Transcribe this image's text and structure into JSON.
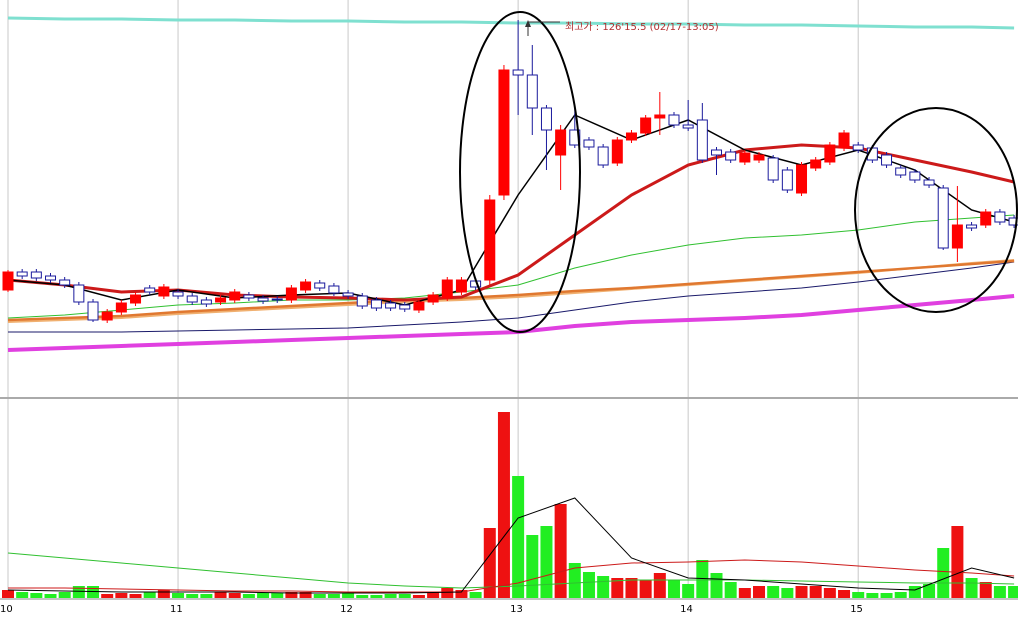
{
  "chart_data": {
    "type": "candlestick",
    "categories": [
      "10",
      null,
      null,
      null,
      null,
      null,
      null,
      null,
      null,
      null,
      null,
      null,
      "11",
      null,
      null,
      null,
      null,
      null,
      null,
      null,
      null,
      null,
      null,
      null,
      "12",
      null,
      null,
      null,
      null,
      null,
      null,
      null,
      null,
      null,
      null,
      null,
      "13",
      null,
      null,
      null,
      null,
      null,
      null,
      null,
      null,
      null,
      null,
      null,
      "14",
      null,
      null,
      null,
      null,
      null,
      null,
      null,
      null,
      null,
      null,
      null,
      "15",
      null,
      null,
      null,
      null,
      null,
      null,
      null,
      null,
      null,
      null,
      null
    ],
    "open": [
      110,
      128,
      128,
      124,
      120,
      115,
      98,
      80,
      88,
      97,
      112,
      104,
      108,
      104,
      100,
      98,
      100,
      105,
      102,
      101,
      100,
      110,
      117,
      114,
      107,
      104,
      100,
      97,
      95,
      90,
      98,
      102,
      108,
      119,
      120,
      205,
      330,
      325,
      292,
      245,
      270,
      260,
      253,
      237,
      260,
      267,
      282,
      285,
      275,
      280,
      250,
      248,
      238,
      240,
      242,
      230,
      207,
      232,
      238,
      252,
      255,
      252,
      245,
      232,
      228,
      220,
      212,
      152,
      175,
      175,
      188,
      182
    ],
    "close": [
      128,
      124,
      122,
      120,
      115,
      98,
      80,
      88,
      97,
      105,
      108,
      113,
      104,
      98,
      96,
      102,
      108,
      102,
      99,
      100,
      112,
      118,
      112,
      107,
      104,
      94,
      92,
      92,
      91,
      98,
      105,
      120,
      120,
      113,
      200,
      330,
      325,
      292,
      270,
      270,
      255,
      253,
      235,
      260,
      267,
      282,
      285,
      275,
      272,
      240,
      245,
      240,
      247,
      245,
      220,
      210,
      235,
      240,
      255,
      267,
      250,
      240,
      235,
      225,
      220,
      215,
      152,
      175,
      172,
      188,
      178,
      175
    ],
    "high": [
      130,
      131,
      131,
      127,
      123,
      118,
      101,
      91,
      100,
      108,
      115,
      116,
      111,
      107,
      103,
      105,
      111,
      108,
      105,
      104,
      115,
      121,
      120,
      117,
      110,
      107,
      103,
      100,
      98,
      101,
      108,
      123,
      123,
      122,
      205,
      335,
      380,
      355,
      295,
      275,
      292,
      263,
      256,
      263,
      270,
      285,
      308,
      288,
      300,
      297,
      253,
      251,
      250,
      248,
      245,
      233,
      238,
      243,
      258,
      270,
      258,
      255,
      248,
      235,
      231,
      223,
      215,
      214,
      178,
      191,
      191,
      185
    ],
    "low": [
      108,
      121,
      119,
      117,
      112,
      95,
      78,
      77,
      85,
      94,
      105,
      101,
      101,
      95,
      93,
      95,
      97,
      99,
      96,
      97,
      97,
      107,
      109,
      104,
      101,
      91,
      89,
      89,
      88,
      87,
      95,
      99,
      105,
      110,
      115,
      200,
      285,
      265,
      230,
      210,
      252,
      250,
      232,
      234,
      257,
      264,
      265,
      272,
      269,
      237,
      225,
      237,
      235,
      237,
      217,
      207,
      204,
      229,
      235,
      249,
      247,
      237,
      232,
      222,
      217,
      212,
      150,
      138,
      169,
      172,
      175,
      172
    ],
    "up_color": "#ff0000",
    "down_color": "#1a1a9c",
    "ylim": [
      0,
      400
    ],
    "grid": true,
    "ma_x": [
      0,
      4,
      8,
      12,
      16,
      20,
      24,
      28,
      32,
      36,
      40,
      44,
      48,
      52,
      56,
      60,
      64,
      68,
      71
    ],
    "ma": [
      {
        "color": "#7fe0d0",
        "width": 3,
        "values": [
          382,
          381,
          381,
          380,
          380,
          379,
          379,
          378,
          378,
          377,
          377,
          376,
          376,
          375,
          375,
          374,
          373,
          373,
          372
        ]
      },
      {
        "color": "#e040e0",
        "width": 4,
        "values": [
          50,
          52,
          54,
          56,
          58,
          60,
          62,
          64,
          66,
          68,
          74,
          78,
          80,
          82,
          85,
          90,
          95,
          100,
          104
        ]
      },
      {
        "color": "#1a1a6a",
        "width": 1,
        "values": [
          68,
          68,
          68,
          69,
          70,
          71,
          72,
          75,
          78,
          82,
          90,
          98,
          104,
          108,
          112,
          118,
          125,
          132,
          138
        ]
      },
      {
        "color": "#f0b070",
        "width": 2,
        "values": [
          78,
          80,
          82,
          86,
          89,
          92,
          95,
          98,
          100,
          103,
          107,
          111,
          115,
          119,
          123,
          127,
          132,
          137,
          140
        ]
      },
      {
        "color": "#e07830",
        "width": 2.5,
        "values": [
          80,
          82,
          84,
          88,
          91,
          94,
          97,
          100,
          102,
          105,
          109,
          112,
          116,
          120,
          124,
          128,
          132,
          136,
          139
        ]
      },
      {
        "color": "#30c030",
        "width": 1,
        "values": [
          82,
          85,
          90,
          95,
          97,
          100,
          100,
          102,
          108,
          115,
          132,
          145,
          155,
          162,
          165,
          170,
          178,
          182,
          185
        ]
      },
      {
        "color": "#cc1a1a",
        "width": 3,
        "values": [
          120,
          115,
          108,
          110,
          105,
          103,
          102,
          100,
          103,
          125,
          165,
          205,
          235,
          250,
          255,
          252,
          240,
          228,
          218
        ]
      },
      {
        "color": "#000000",
        "width": 1.5,
        "values": [
          120,
          115,
          100,
          110,
          102,
          105,
          107,
          95,
          110,
          205,
          285,
          260,
          280,
          250,
          235,
          250,
          230,
          190,
          178
        ]
      }
    ],
    "volume": {
      "ylim": [
        0,
        190
      ],
      "up_color": "#ee1111",
      "down_color": "#22ee22",
      "values": [
        8,
        6,
        5,
        4,
        6,
        12,
        12,
        4,
        5,
        4,
        6,
        8,
        5,
        4,
        4,
        6,
        5,
        4,
        5,
        5,
        6,
        6,
        4,
        4,
        5,
        3,
        3,
        4,
        4,
        3,
        6,
        10,
        8,
        6,
        70,
        186,
        122,
        63,
        72,
        94,
        35,
        26,
        22,
        20,
        20,
        18,
        25,
        18,
        14,
        38,
        25,
        16,
        10,
        12,
        12,
        10,
        12,
        12,
        10,
        8,
        6,
        5,
        5,
        6,
        12,
        14,
        50,
        72,
        20,
        16,
        12,
        12
      ]
    },
    "volume_ma": [
      {
        "color": "#30c030",
        "width": 1,
        "values": [
          45,
          40,
          35,
          30,
          25,
          20,
          15,
          12,
          10,
          12,
          15,
          18,
          18,
          18,
          17,
          16,
          15,
          15,
          14
        ]
      },
      {
        "color": "#cc1a1a",
        "width": 1,
        "values": [
          10,
          10,
          9,
          8,
          7,
          7,
          6,
          6,
          6,
          15,
          30,
          35,
          36,
          38,
          36,
          32,
          28,
          25,
          22
        ]
      },
      {
        "color": "#000000",
        "width": 1,
        "values": [
          8,
          7,
          6,
          6,
          6,
          5,
          5,
          5,
          6,
          80,
          100,
          40,
          20,
          18,
          14,
          10,
          8,
          30,
          20
        ]
      }
    ],
    "annotation": "최고가 : 126'15.5 (02/17-13:05)"
  }
}
